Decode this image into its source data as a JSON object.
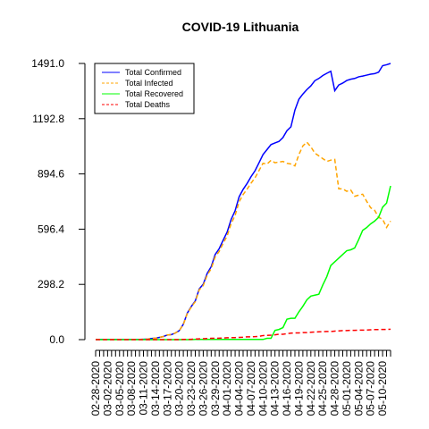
{
  "chart_data": {
    "type": "line",
    "title": "COVID-19 Lithuania",
    "xlabel": "",
    "ylabel": "",
    "start_date": "02-28-2020",
    "end_date": "05-14-2020",
    "x_tick_labels": [
      "02-28-2020",
      "03-02-2020",
      "03-05-2020",
      "03-08-2020",
      "03-11-2020",
      "03-14-2020",
      "03-17-2020",
      "03-20-2020",
      "03-23-2020",
      "03-26-2020",
      "03-29-2020",
      "04-01-2020",
      "04-04-2020",
      "04-07-2020",
      "04-10-2020",
      "04-13-2020",
      "04-16-2020",
      "04-19-2020",
      "04-22-2020",
      "04-25-2020",
      "04-28-2020",
      "05-01-2020",
      "05-04-2020",
      "05-07-2020",
      "05-10-2020"
    ],
    "y_ticks": [
      "0.0",
      "298.2",
      "596.4",
      "894.6",
      "1192.8",
      "1491.0"
    ],
    "ylim": [
      0,
      1491
    ],
    "grid": false,
    "legend_position": "top-left",
    "series": [
      {
        "name": "Total Confirmed",
        "color": "#0000ff",
        "dash": "solid",
        "values": [
          1,
          1,
          1,
          1,
          1,
          1,
          1,
          1,
          1,
          1,
          1,
          1,
          2,
          3,
          6,
          8,
          12,
          17,
          25,
          27,
          36,
          49,
          83,
          143,
          179,
          209,
          274,
          299,
          358,
          394,
          460,
          491,
          537,
          581,
          649,
          696,
          771,
          811,
          843,
          880,
          912,
          955,
          999,
          1026,
          1053,
          1062,
          1070,
          1091,
          1128,
          1149,
          1239,
          1298,
          1326,
          1350,
          1370,
          1398,
          1410,
          1426,
          1438,
          1449,
          1344,
          1375,
          1385,
          1399,
          1406,
          1410,
          1419,
          1423,
          1428,
          1433,
          1436,
          1444,
          1479,
          1484,
          1491
        ]
      },
      {
        "name": "Total Infected",
        "color": "#ffa500",
        "dash": "dashed",
        "values": [
          1,
          1,
          1,
          1,
          1,
          1,
          1,
          1,
          1,
          1,
          1,
          1,
          2,
          3,
          6,
          8,
          12,
          17,
          25,
          27,
          36,
          49,
          82,
          141,
          176,
          205,
          269,
          292,
          349,
          383,
          447,
          476,
          520,
          560,
          626,
          671,
          744,
          783,
          812,
          845,
          874,
          913,
          952,
          948,
          968,
          955,
          959,
          962,
          952,
          948,
          938,
          999,
          1046,
          1066,
          1041,
          1007,
          992,
          977,
          962,
          969,
          973,
          814,
          814,
          801,
          808,
          774,
          780,
          785,
          747,
          712,
          698,
          660,
          650,
          606,
          640
        ]
      },
      {
        "name": "Total Recovered",
        "color": "#00ff00",
        "dash": "solid",
        "values": [
          0,
          0,
          0,
          0,
          0,
          0,
          0,
          0,
          0,
          0,
          0,
          0,
          0,
          0,
          0,
          0,
          0,
          0,
          0,
          0,
          0,
          0,
          0,
          0,
          0,
          1,
          1,
          1,
          1,
          1,
          1,
          1,
          1,
          1,
          1,
          1,
          1,
          1,
          1,
          1,
          1,
          1,
          1,
          7,
          7,
          50,
          55,
          65,
          110,
          115,
          115,
          150,
          180,
          215,
          235,
          240,
          245,
          295,
          340,
          400,
          420,
          440,
          460,
          480,
          485,
          495,
          540,
          590,
          605,
          625,
          640,
          660,
          715,
          737,
          830
        ]
      },
      {
        "name": "Total Deaths",
        "color": "#ff0000",
        "dash": "dashed",
        "values": [
          0,
          0,
          0,
          0,
          0,
          0,
          0,
          0,
          0,
          0,
          0,
          0,
          0,
          0,
          0,
          0,
          0,
          0,
          0,
          0,
          0,
          0,
          1,
          1,
          2,
          3,
          4,
          5,
          6,
          7,
          7,
          8,
          9,
          10,
          11,
          11,
          12,
          13,
          15,
          15,
          16,
          18,
          22,
          23,
          24,
          26,
          29,
          29,
          32,
          35,
          36,
          36,
          38,
          38,
          40,
          41,
          42,
          43,
          44,
          44,
          46,
          47,
          49,
          49,
          50,
          50,
          51,
          51,
          52,
          53,
          54,
          54,
          55,
          55,
          56
        ]
      }
    ]
  }
}
